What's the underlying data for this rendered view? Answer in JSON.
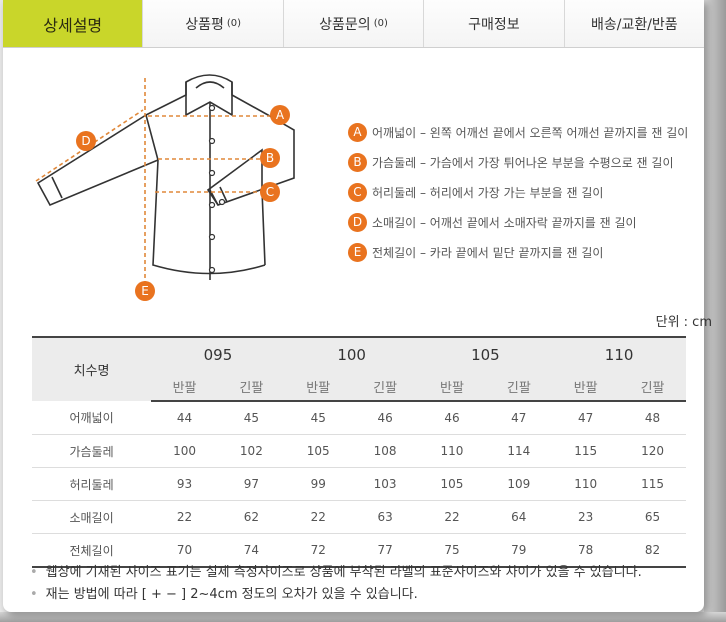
{
  "tabs": [
    {
      "label": "상세설명",
      "count": ""
    },
    {
      "label": "상품평",
      "count": "(0)"
    },
    {
      "label": "상품문의",
      "count": "(0)"
    },
    {
      "label": "구매정보",
      "count": ""
    },
    {
      "label": "배송/교환/반품",
      "count": ""
    }
  ],
  "active_tab": "상세설명",
  "accent_color": "#c9d62a",
  "marker_color": "#e9731f",
  "legend": [
    {
      "mark": "A",
      "text": "어깨넓이 – 왼쪽 어깨선 끝에서 오른쪽 어깨선 끝까지를 잰 길이"
    },
    {
      "mark": "B",
      "text": "가슴둘레 – 가슴에서 가장 튀어나온 부분을 수평으로 잰 길이"
    },
    {
      "mark": "C",
      "text": "허리둘레 – 허리에서 가장 가는 부분을 잰 길이"
    },
    {
      "mark": "D",
      "text": "소매길이 – 어깨선 끝에서 소매자락 끝까지를 잰 길이"
    },
    {
      "mark": "E",
      "text": "전체길이 – 카라 끝에서 밑단 끝까지를 잰 길이"
    }
  ],
  "unit": "단위 : cm",
  "table": {
    "name_header": "치수명",
    "sizes": [
      "095",
      "100",
      "105",
      "110"
    ],
    "sub": [
      "반팔",
      "긴팔"
    ],
    "rows": [
      {
        "name": "어깨넓이",
        "values": [
          "44",
          "45",
          "45",
          "46",
          "46",
          "47",
          "47",
          "48"
        ]
      },
      {
        "name": "가슴둘레",
        "values": [
          "100",
          "102",
          "105",
          "108",
          "110",
          "114",
          "115",
          "120"
        ]
      },
      {
        "name": "허리둘레",
        "values": [
          "93",
          "97",
          "99",
          "103",
          "105",
          "109",
          "110",
          "115"
        ]
      },
      {
        "name": "소매길이",
        "values": [
          "22",
          "62",
          "22",
          "63",
          "22",
          "64",
          "23",
          "65"
        ]
      },
      {
        "name": "전체길이",
        "values": [
          "70",
          "74",
          "72",
          "77",
          "75",
          "79",
          "78",
          "82"
        ]
      }
    ]
  },
  "notes": [
    "웹상에 기재된 사이즈 표기는 실제 측정사이즈로 상품에 부착된 라벨의 표준사이즈와 차이가 있을 수 있습니다.",
    "재는 방법에 따라 [ + − ] 2~4cm 정도의 오차가 있을 수 있습니다."
  ]
}
